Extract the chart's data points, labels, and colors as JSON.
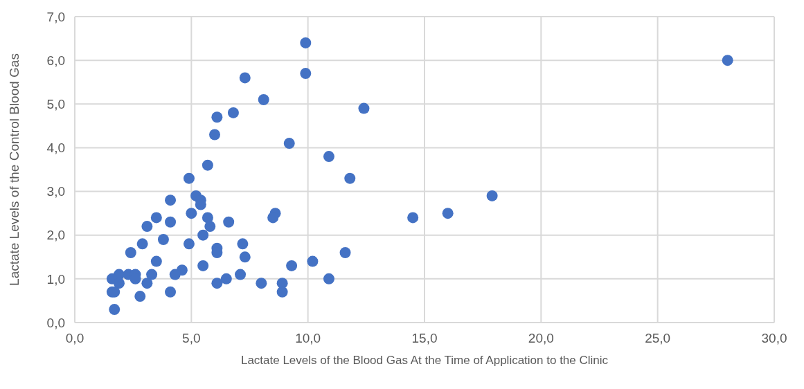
{
  "chart_data": {
    "type": "scatter",
    "xlabel": "Lactate Levels of the Blood Gas At the Time of Application to the Clinic",
    "ylabel": "Lactate Levels of the Control Blood Gas",
    "x": [
      9.9,
      28.0,
      9.9,
      7.3,
      8.1,
      12.4,
      6.8,
      6.1,
      6.0,
      9.2,
      10.9,
      5.7,
      4.9,
      11.8,
      17.9,
      5.2,
      5.4,
      5.4,
      4.1,
      8.6,
      8.5,
      16.0,
      14.5,
      5.0,
      3.5,
      5.7,
      5.8,
      6.6,
      4.1,
      3.1,
      3.8,
      2.9,
      4.9,
      5.5,
      6.1,
      6.1,
      7.2,
      2.4,
      11.6,
      7.3,
      3.5,
      10.2,
      9.3,
      5.5,
      4.6,
      4.3,
      7.1,
      3.3,
      1.9,
      2.3,
      2.6,
      1.6,
      2.6,
      10.9,
      6.5,
      1.9,
      3.1,
      6.1,
      8.0,
      8.9,
      1.6,
      1.7,
      4.1,
      8.9,
      2.8,
      1.7
    ],
    "series": [
      {
        "color": "#4472c4",
        "values": [
          6.4,
          6.0,
          5.7,
          5.6,
          5.1,
          4.9,
          4.8,
          4.7,
          4.3,
          4.1,
          3.8,
          3.6,
          3.3,
          3.3,
          2.9,
          2.9,
          2.8,
          2.7,
          2.8,
          2.5,
          2.4,
          2.5,
          2.4,
          2.5,
          2.4,
          2.4,
          2.2,
          2.3,
          2.3,
          2.2,
          1.9,
          1.8,
          1.8,
          2.0,
          1.7,
          1.6,
          1.8,
          1.6,
          1.6,
          1.5,
          1.4,
          1.4,
          1.3,
          1.3,
          1.2,
          1.1,
          1.1,
          1.1,
          1.1,
          1.1,
          1.1,
          1.0,
          1.0,
          1.0,
          1.0,
          0.9,
          0.9,
          0.9,
          0.9,
          0.9,
          0.7,
          0.7,
          0.7,
          0.7,
          0.6,
          0.3
        ]
      }
    ],
    "xlim": [
      0,
      30
    ],
    "xticks": [
      {
        "value": 0,
        "label": "0,0"
      },
      {
        "value": 5,
        "label": "5,0"
      },
      {
        "value": 10,
        "label": "10,0"
      },
      {
        "value": 15,
        "label": "15,0"
      },
      {
        "value": 20,
        "label": "20,0"
      },
      {
        "value": 25,
        "label": "25,0"
      },
      {
        "value": 30,
        "label": "30,0"
      }
    ],
    "ylim": [
      0,
      7
    ],
    "yticks": [
      {
        "value": 0,
        "label": "0,0"
      },
      {
        "value": 1,
        "label": "1,0"
      },
      {
        "value": 2,
        "label": "2,0"
      },
      {
        "value": 3,
        "label": "3,0"
      },
      {
        "value": 4,
        "label": "4,0"
      },
      {
        "value": 5,
        "label": "5,0"
      },
      {
        "value": 6,
        "label": "6,0"
      },
      {
        "value": 7,
        "label": "7,0"
      }
    ],
    "grid": true,
    "marker": "circle",
    "legend": false
  }
}
